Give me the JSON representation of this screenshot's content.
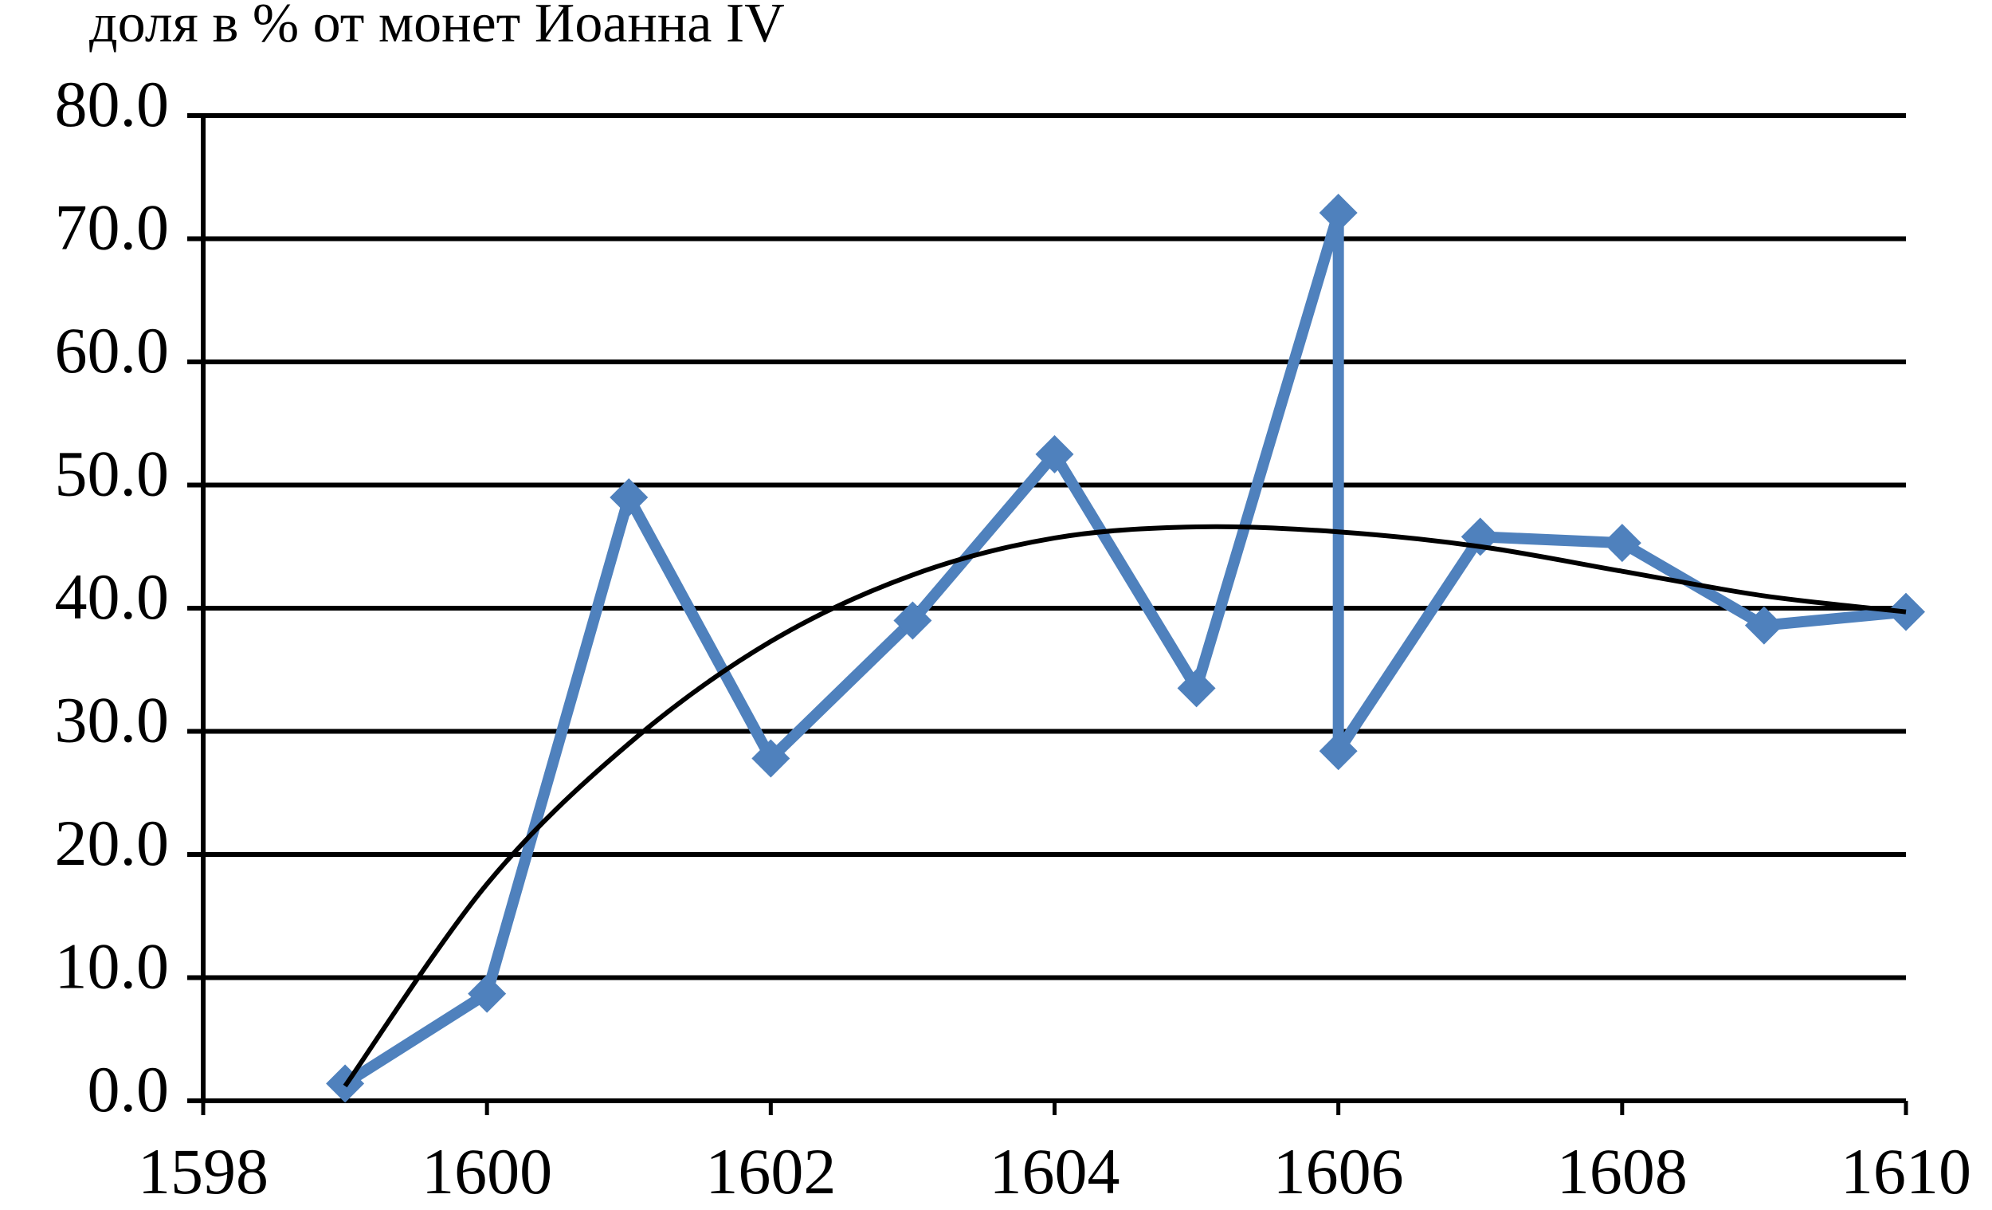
{
  "chart_data": {
    "type": "line",
    "title": "доля в % от монет Иоанна IV",
    "series": [
      {
        "color": "#4f81bd",
        "marker": "diamond",
        "x": [
          1599,
          1600,
          1601,
          1602,
          1603,
          1604,
          1605,
          1606,
          1606,
          1607,
          1608,
          1609,
          1610
        ],
        "values": [
          1.4,
          8.7,
          49.0,
          27.8,
          39.0,
          52.5,
          33.5,
          72.1,
          28.4,
          45.8,
          45.3,
          38.6,
          39.7
        ]
      },
      {
        "color": "#000000",
        "smooth": true,
        "x": [
          1599,
          1600,
          1601,
          1602,
          1603,
          1604,
          1605,
          1606,
          1607,
          1608,
          1609,
          1610
        ],
        "values": [
          1.2,
          17.6,
          29.0,
          37.3,
          42.7,
          45.7,
          46.6,
          46.2,
          45.0,
          43.0,
          41.0,
          39.7
        ]
      }
    ],
    "xlim": [
      1598,
      1610
    ],
    "xticks": [
      1598,
      1600,
      1602,
      1604,
      1606,
      1608,
      1610
    ],
    "ylim": [
      0,
      80
    ],
    "yticks": [
      {
        "value": 0,
        "label": "0.0"
      },
      {
        "value": 10,
        "label": "10.0"
      },
      {
        "value": 20,
        "label": "20.0"
      },
      {
        "value": 30,
        "label": "30.0"
      },
      {
        "value": 40,
        "label": "40.0"
      },
      {
        "value": 50,
        "label": "50.0"
      },
      {
        "value": 60,
        "label": "60.0"
      },
      {
        "value": 70,
        "label": "70.0"
      },
      {
        "value": 80,
        "label": "80.0"
      }
    ],
    "grid": true
  }
}
